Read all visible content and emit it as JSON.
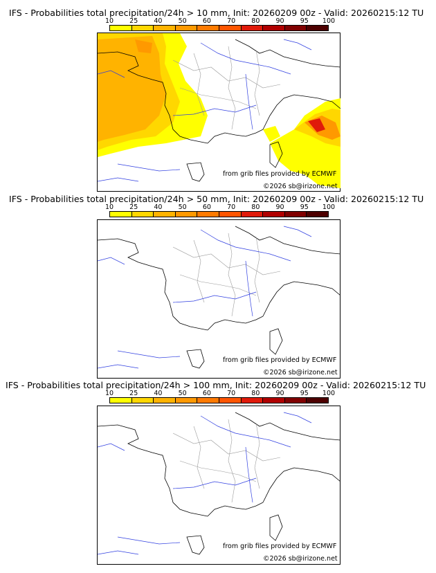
{
  "legend": {
    "thresholds": [
      "10",
      "25",
      "40",
      "50",
      "60",
      "70",
      "80",
      "90",
      "95",
      "100"
    ],
    "colors": [
      "#ffff00",
      "#ffd700",
      "#ffb300",
      "#ff9900",
      "#ff7a00",
      "#ff5500",
      "#e01a0a",
      "#b00000",
      "#800000",
      "#4d0000"
    ]
  },
  "panels": [
    {
      "title": "IFS - Probabilities total precipitation/24h > 10 mm, Init: 20260209 00z - Valid: 20260215:12 TU",
      "credit_source": "from grib files provided by ECMWF",
      "credit_copyright": "©2026 sb@irizone.net"
    },
    {
      "title": "IFS - Probabilities total precipitation/24h > 50 mm, Init: 20260209 00z - Valid: 20260215:12 TU",
      "credit_source": "from grib files provided by ECMWF",
      "credit_copyright": "©2026 sb@irizone.net"
    },
    {
      "title": "IFS - Probabilities total precipitation/24h > 100 mm, Init: 20260209 00z - Valid: 20260215:12 TU",
      "credit_source": "from grib files provided by ECMWF",
      "credit_copyright": "©2026 sb@irizone.net"
    }
  ]
}
